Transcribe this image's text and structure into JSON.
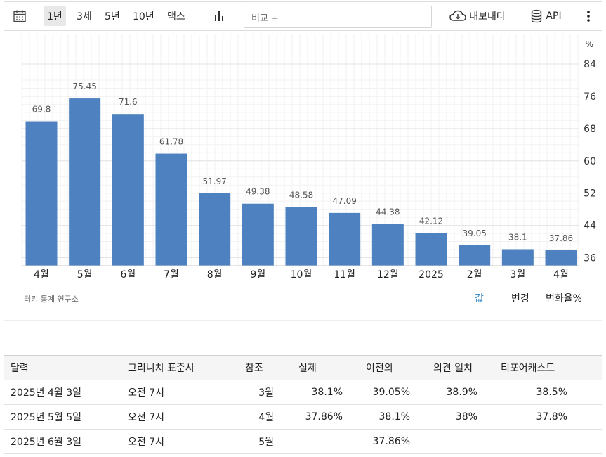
{
  "toolbar": {
    "ranges": [
      "1년",
      "3세",
      "5년",
      "10년",
      "맥스"
    ],
    "active_range": "1년",
    "compare_placeholder": "비교 +",
    "export_label": "내보내다",
    "api_label": "API",
    "icons": [
      "calendar-icon",
      "bar-chart-icon",
      "cloud-download-icon",
      "database-icon",
      "more-vertical-icon"
    ]
  },
  "chart_data": {
    "type": "bar",
    "categories": [
      "4월",
      "5월",
      "6월",
      "7월",
      "8월",
      "9월",
      "10월",
      "11월",
      "12월",
      "2025",
      "2월",
      "3월",
      "4월"
    ],
    "values": [
      69.8,
      75.45,
      71.6,
      61.78,
      51.97,
      49.38,
      48.58,
      47.09,
      44.38,
      42.12,
      39.05,
      38.1,
      37.86
    ],
    "value_labels": [
      "69.8",
      "75.45",
      "71.6",
      "61.78",
      "51.97",
      "49.38",
      "48.58",
      "47.09",
      "44.38",
      "42.12",
      "39.05",
      "38.1",
      "37.86"
    ],
    "y_ticks": [
      "84",
      "76",
      "68",
      "60",
      "52",
      "44",
      "36"
    ],
    "ylim": [
      34,
      84
    ],
    "unit_label": "%",
    "bar_color": "#4d81bf",
    "grid": true,
    "axis_position": "right"
  },
  "chart_footer": {
    "source": "터키 통계 연구소",
    "views": [
      "값",
      "변경",
      "변화율%"
    ],
    "active_view": "값",
    "active_color": "#3b8cc4"
  },
  "table": {
    "headers": [
      "달력",
      "그리니치 표준시",
      "참조",
      "실제",
      "이전의",
      "의견 일치",
      "티포어캐스트"
    ],
    "rows": [
      [
        "2025년 4월 3일",
        "오전 7시",
        "3월",
        "38.1%",
        "39.05%",
        "38.9%",
        "38.5%"
      ],
      [
        "2025년 5월 5일",
        "오전 7시",
        "4월",
        "37.86%",
        "38.1%",
        "38%",
        "37.8%"
      ],
      [
        "2025년 6월 3일",
        "오전 7시",
        "5월",
        "",
        "37.86%",
        "",
        ""
      ]
    ]
  }
}
